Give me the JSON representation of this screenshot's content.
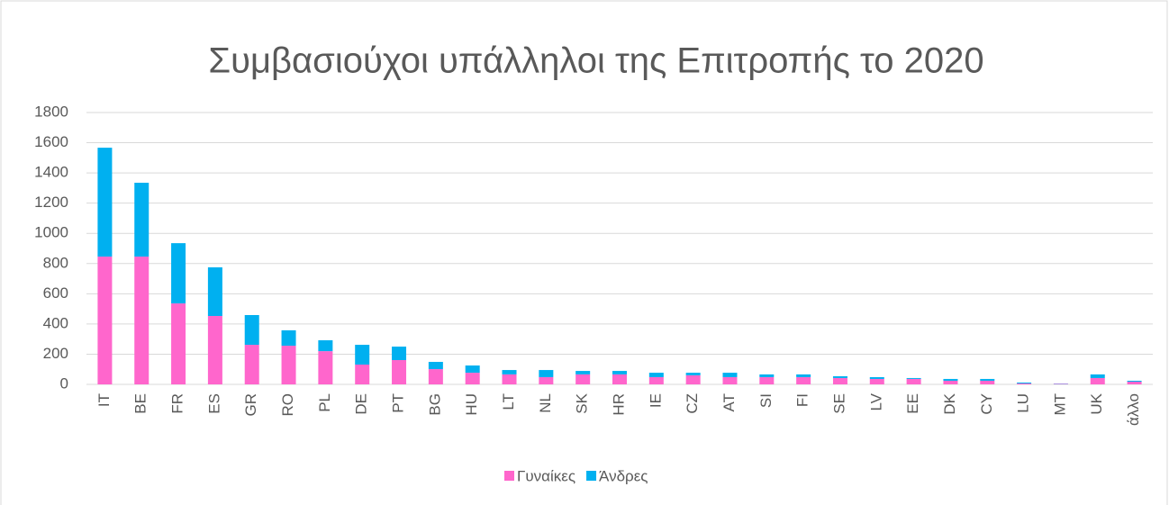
{
  "chart_data": {
    "type": "stacked_bar",
    "title": "Συμβασιούχοι υπάλληλοι της Επιτροπής το 2020",
    "categories": [
      "IT",
      "BE",
      "FR",
      "ES",
      "GR",
      "RO",
      "PL",
      "DE",
      "PT",
      "BG",
      "HU",
      "LT",
      "NL",
      "SK",
      "HR",
      "IE",
      "CZ",
      "AT",
      "SI",
      "FI",
      "SE",
      "LV",
      "EE",
      "DK",
      "CY",
      "LU",
      "MT",
      "UK",
      "άλλο"
    ],
    "series": [
      {
        "name": "Γυναίκες",
        "color": "#ff66cc",
        "values": [
          846,
          846,
          536,
          453,
          262,
          256,
          220,
          131,
          161,
          101,
          77,
          66,
          48,
          66,
          66,
          48,
          60,
          48,
          48,
          48,
          42,
          36,
          36,
          24,
          24,
          6,
          4,
          42,
          18
        ]
      },
      {
        "name": "Άνδρες",
        "color": "#00b0f0",
        "values": [
          721,
          489,
          399,
          322,
          197,
          102,
          72,
          131,
          89,
          48,
          48,
          29,
          47,
          23,
          23,
          29,
          17,
          29,
          18,
          18,
          12,
          12,
          6,
          12,
          12,
          6,
          2,
          24,
          6
        ]
      }
    ],
    "ylim": [
      0,
      1800
    ],
    "yticks": [
      0,
      200,
      400,
      600,
      800,
      1000,
      1200,
      1400,
      1600,
      1800
    ],
    "grid": true,
    "legend": "bottom"
  }
}
